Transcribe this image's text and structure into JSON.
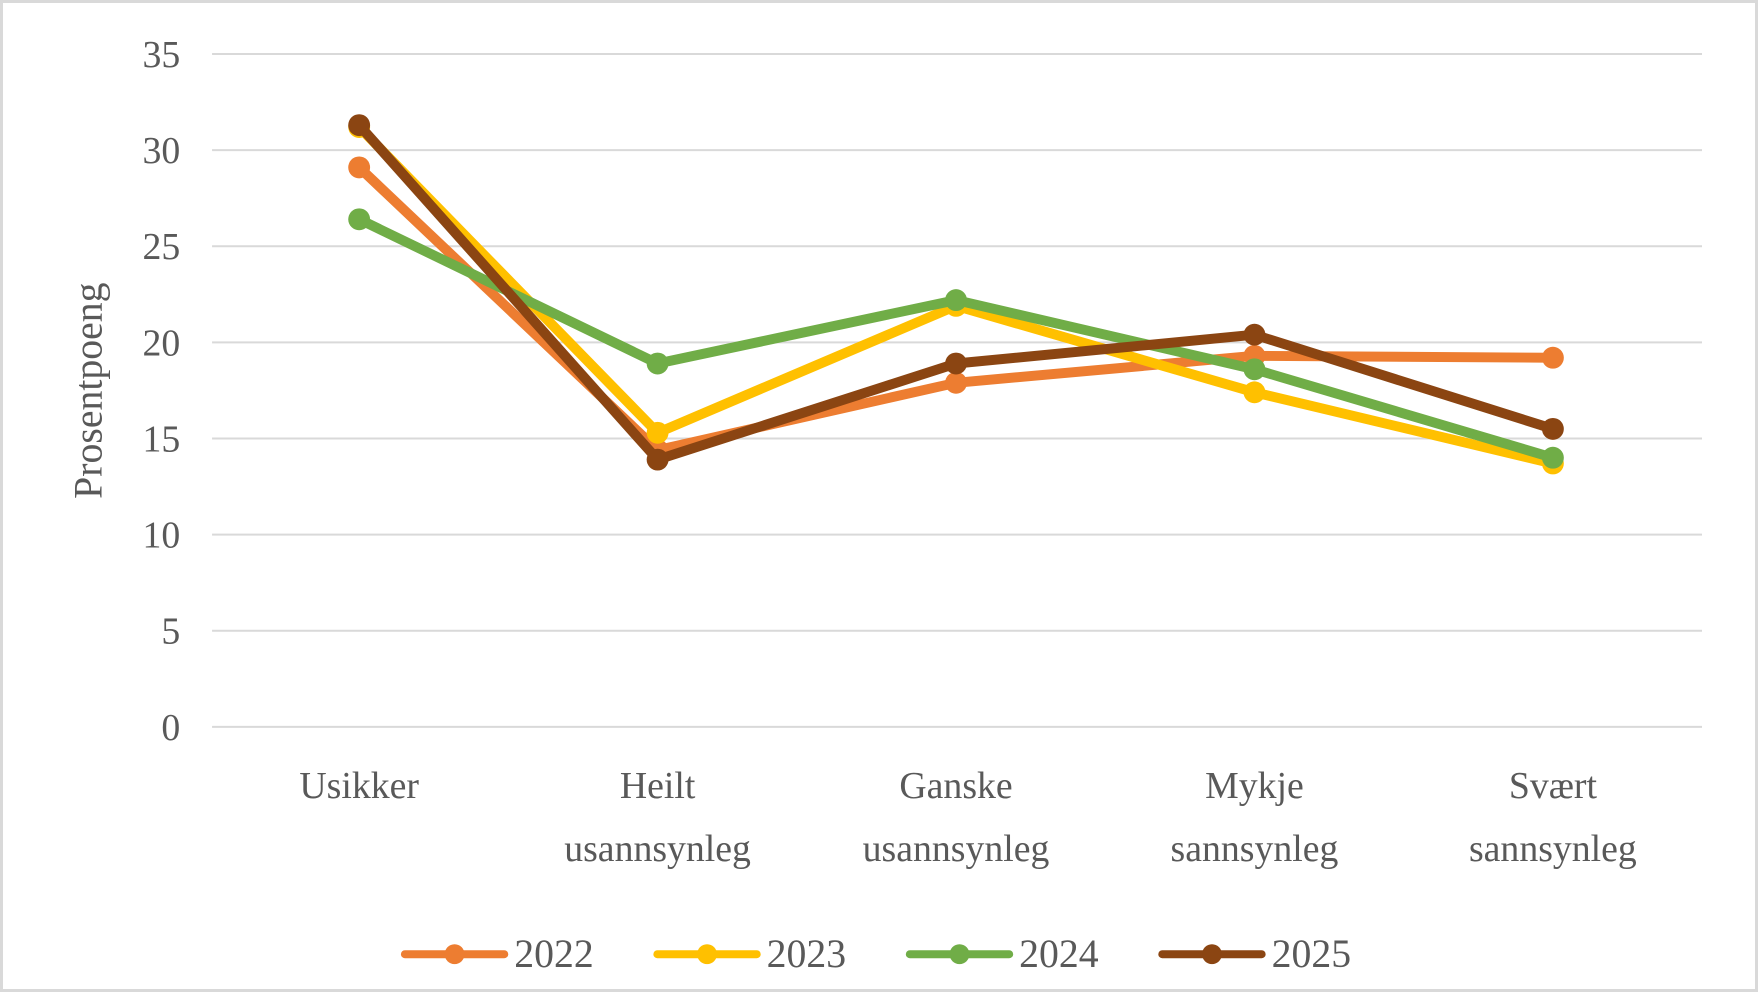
{
  "chart_data": {
    "type": "line",
    "title": "",
    "xlabel": "",
    "ylabel": "Prosentpoeng",
    "ylim": [
      0,
      35
    ],
    "ytick_step": 5,
    "yticks": [
      0,
      5,
      10,
      15,
      20,
      25,
      30,
      35
    ],
    "grid": "horizontal",
    "legend_position": "bottom",
    "categories": [
      "Usikker",
      "Heilt usannsynleg",
      "Ganske usannsynleg",
      "Mykje sannsynleg",
      "Svært sannsynleg"
    ],
    "series": [
      {
        "name": "2022",
        "color": "#ED7D31",
        "values": [
          29.1,
          14.4,
          17.9,
          19.3,
          19.2
        ]
      },
      {
        "name": "2023",
        "color": "#FFC000",
        "values": [
          31.2,
          15.3,
          21.9,
          17.4,
          13.7
        ]
      },
      {
        "name": "2024",
        "color": "#70AD47",
        "values": [
          26.4,
          18.9,
          22.2,
          18.6,
          14.0
        ]
      },
      {
        "name": "2025",
        "color": "#8B4512",
        "values": [
          31.3,
          13.9,
          18.9,
          20.4,
          15.5
        ]
      }
    ],
    "colors": {
      "axis_text": "#595959",
      "gridline": "#D9D9D9",
      "background": "#FFFFFF",
      "frame_border": "#D9D9D9"
    }
  }
}
